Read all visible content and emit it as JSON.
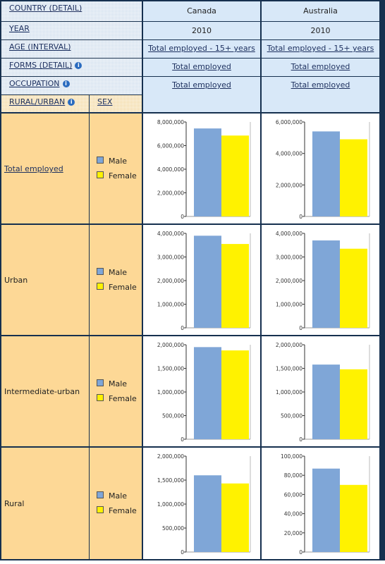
{
  "header": {
    "dimensions": [
      {
        "label": "COUNTRY (DETAIL)",
        "info": false
      },
      {
        "label": "YEAR",
        "info": false
      },
      {
        "label": "AGE (INTERVAL)",
        "info": false
      },
      {
        "label": "FORMS (DETAIL)",
        "info": true
      },
      {
        "label": "OCCUPATION",
        "info": true
      },
      {
        "label": "RURAL/URBAN",
        "info": true
      }
    ],
    "sex_label": "SEX",
    "columns": [
      {
        "country": "Canada",
        "year": "2010",
        "age": "Total employed - 15+ years",
        "forms": "Total employed",
        "occupation": "Total employed"
      },
      {
        "country": "Australia",
        "year": "2010",
        "age": "Total employed - 15+ years",
        "forms": "Total employed",
        "occupation": "Total employed"
      }
    ]
  },
  "legend": {
    "male": "Male",
    "female": "Female"
  },
  "colors": {
    "male": "#7fa6d7",
    "female": "#fff200"
  },
  "rows": [
    {
      "label": "Total employed",
      "link": true
    },
    {
      "label": "Urban",
      "link": false
    },
    {
      "label": "Intermediate-urban",
      "link": false
    },
    {
      "label": "Rural",
      "link": false
    }
  ],
  "chart_data": [
    {
      "type": "bar",
      "country": "Canada",
      "area": "Total employed",
      "categories": [
        "Male",
        "Female"
      ],
      "values": [
        7450000,
        6850000
      ],
      "ylim": [
        0,
        8000000
      ],
      "ticks": [
        "0",
        "2,000,000",
        "4,000,000",
        "6,000,000",
        "8,000,000"
      ]
    },
    {
      "type": "bar",
      "country": "Australia",
      "area": "Total employed",
      "categories": [
        "Male",
        "Female"
      ],
      "values": [
        5400000,
        4900000
      ],
      "ylim": [
        0,
        6000000
      ],
      "ticks": [
        "0",
        "2,000,000",
        "4,000,000",
        "6,000,000"
      ]
    },
    {
      "type": "bar",
      "country": "Canada",
      "area": "Urban",
      "categories": [
        "Male",
        "Female"
      ],
      "values": [
        3900000,
        3550000
      ],
      "ylim": [
        0,
        4000000
      ],
      "ticks": [
        "0",
        "1,000,000",
        "2,000,000",
        "3,000,000",
        "4,000,000"
      ]
    },
    {
      "type": "bar",
      "country": "Australia",
      "area": "Urban",
      "categories": [
        "Male",
        "Female"
      ],
      "values": [
        3700000,
        3350000
      ],
      "ylim": [
        0,
        4000000
      ],
      "ticks": [
        "0",
        "1,000,000",
        "2,000,000",
        "3,000,000",
        "4,000,000"
      ]
    },
    {
      "type": "bar",
      "country": "Canada",
      "area": "Intermediate-urban",
      "categories": [
        "Male",
        "Female"
      ],
      "values": [
        1950000,
        1880000
      ],
      "ylim": [
        0,
        2000000
      ],
      "ticks": [
        "0",
        "500,000",
        "1,000,000",
        "1,500,000",
        "2,000,000"
      ]
    },
    {
      "type": "bar",
      "country": "Australia",
      "area": "Intermediate-urban",
      "categories": [
        "Male",
        "Female"
      ],
      "values": [
        1580000,
        1480000
      ],
      "ylim": [
        0,
        2000000
      ],
      "ticks": [
        "0",
        "500,000",
        "1,000,000",
        "1,500,000",
        "2,000,000"
      ]
    },
    {
      "type": "bar",
      "country": "Canada",
      "area": "Rural",
      "categories": [
        "Male",
        "Female"
      ],
      "values": [
        1600000,
        1430000
      ],
      "ylim": [
        0,
        2000000
      ],
      "ticks": [
        "0",
        "500,000",
        "1,000,000",
        "1,500,000",
        "2,000,000"
      ]
    },
    {
      "type": "bar",
      "country": "Australia",
      "area": "Rural",
      "categories": [
        "Male",
        "Female"
      ],
      "values": [
        87000,
        70000
      ],
      "ylim": [
        0,
        100000
      ],
      "ticks": [
        "0",
        "20,000",
        "40,000",
        "60,000",
        "80,000",
        "100,000"
      ]
    }
  ]
}
